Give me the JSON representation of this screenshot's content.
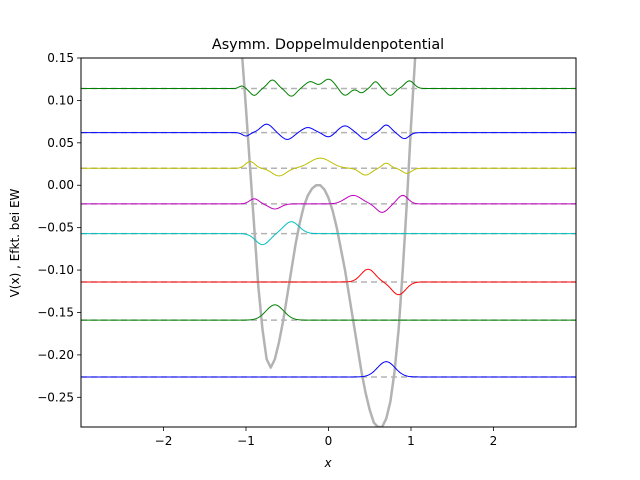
{
  "chart_data": {
    "type": "line",
    "title": "Asymm. Doppelmuldenpotential",
    "xlabel": "x",
    "ylabel": "V(x) ,  Efkt. bei EW",
    "xlim": [
      -3,
      3
    ],
    "ylim": [
      -0.285,
      0.15
    ],
    "x_ticks": [
      -2,
      -1,
      0,
      1,
      2
    ],
    "x_tick_labels": [
      "−2",
      "−1",
      "0",
      "1",
      "2"
    ],
    "y_ticks": [
      -0.25,
      -0.2,
      -0.15,
      -0.1,
      -0.05,
      0.0,
      0.05,
      0.1,
      0.15
    ],
    "y_tick_labels": [
      "−0.25",
      "−0.20",
      "−0.15",
      "−0.10",
      "−0.05",
      "0.00",
      "0.05",
      "0.10",
      "0.15"
    ],
    "grid": false,
    "potential": {
      "color": "#b3b3b3",
      "x": [
        -1.045,
        -1.0,
        -0.95,
        -0.9,
        -0.85,
        -0.8,
        -0.75,
        -0.7,
        -0.65,
        -0.6,
        -0.55,
        -0.5,
        -0.45,
        -0.4,
        -0.35,
        -0.3,
        -0.25,
        -0.2,
        -0.15,
        -0.1,
        -0.05,
        0.0,
        0.05,
        0.1,
        0.15,
        0.2,
        0.25,
        0.3,
        0.35,
        0.4,
        0.45,
        0.5,
        0.55,
        0.6,
        0.65,
        0.7,
        0.75,
        0.8,
        0.85,
        0.9,
        0.95,
        1.0,
        1.05,
        1.1
      ],
      "y": [
        0.15,
        0.09,
        0.02,
        -0.05,
        -0.12,
        -0.17,
        -0.205,
        -0.215,
        -0.205,
        -0.185,
        -0.16,
        -0.13,
        -0.1,
        -0.07,
        -0.045,
        -0.025,
        -0.012,
        -0.004,
        0.0,
        0.0,
        -0.005,
        -0.015,
        -0.03,
        -0.05,
        -0.075,
        -0.1,
        -0.13,
        -0.16,
        -0.19,
        -0.22,
        -0.245,
        -0.265,
        -0.28,
        -0.285,
        -0.285,
        -0.275,
        -0.255,
        -0.22,
        -0.17,
        -0.1,
        -0.02,
        0.07,
        0.15,
        0.2
      ]
    },
    "levels": [
      {
        "energy": -0.226,
        "color": "#0000ff",
        "bumps": [
          [
            0.7,
            0.018,
            0.15
          ]
        ]
      },
      {
        "energy": -0.159,
        "color": "#008000",
        "bumps": [
          [
            -0.65,
            0.018,
            0.15
          ]
        ]
      },
      {
        "energy": -0.114,
        "color": "#ff0000",
        "bumps": [
          [
            0.48,
            0.015,
            0.12
          ],
          [
            0.85,
            -0.015,
            0.12
          ]
        ]
      },
      {
        "energy": -0.057,
        "color": "#00bfbf",
        "bumps": [
          [
            -0.8,
            -0.013,
            0.12
          ],
          [
            -0.45,
            0.014,
            0.13
          ]
        ]
      },
      {
        "energy": -0.022,
        "color": "#bf00bf",
        "bumps": [
          [
            -0.9,
            0.006,
            0.08
          ],
          [
            -0.65,
            -0.006,
            0.1
          ],
          [
            0.3,
            0.01,
            0.14
          ],
          [
            0.65,
            -0.01,
            0.1
          ],
          [
            0.9,
            0.01,
            0.09
          ]
        ]
      },
      {
        "energy": 0.02,
        "color": "#bfbf00",
        "bumps": [
          [
            -0.95,
            0.008,
            0.08
          ],
          [
            -0.6,
            -0.009,
            0.12
          ],
          [
            -0.1,
            0.012,
            0.18
          ],
          [
            0.45,
            -0.008,
            0.1
          ],
          [
            0.7,
            0.006,
            0.07
          ],
          [
            0.95,
            -0.006,
            0.08
          ]
        ]
      },
      {
        "energy": 0.062,
        "color": "#0000ff",
        "bumps": [
          [
            -1.0,
            -0.004,
            0.06
          ],
          [
            -0.75,
            0.01,
            0.1
          ],
          [
            -0.5,
            -0.008,
            0.1
          ],
          [
            -0.25,
            0.006,
            0.1
          ],
          [
            0.0,
            -0.005,
            0.08
          ],
          [
            0.2,
            0.008,
            0.1
          ],
          [
            0.45,
            -0.008,
            0.09
          ],
          [
            0.7,
            0.009,
            0.08
          ],
          [
            0.92,
            -0.007,
            0.08
          ]
        ]
      },
      {
        "energy": 0.114,
        "color": "#008000",
        "bumps": [
          [
            -1.05,
            0.003,
            0.05
          ],
          [
            -0.9,
            -0.008,
            0.07
          ],
          [
            -0.68,
            0.01,
            0.08
          ],
          [
            -0.45,
            -0.009,
            0.08
          ],
          [
            -0.22,
            0.008,
            0.09
          ],
          [
            0.0,
            0.011,
            0.1
          ],
          [
            0.2,
            -0.008,
            0.08
          ],
          [
            0.4,
            -0.005,
            0.06
          ],
          [
            0.57,
            0.008,
            0.06
          ],
          [
            0.75,
            -0.008,
            0.07
          ],
          [
            0.98,
            0.009,
            0.08
          ]
        ]
      }
    ]
  }
}
